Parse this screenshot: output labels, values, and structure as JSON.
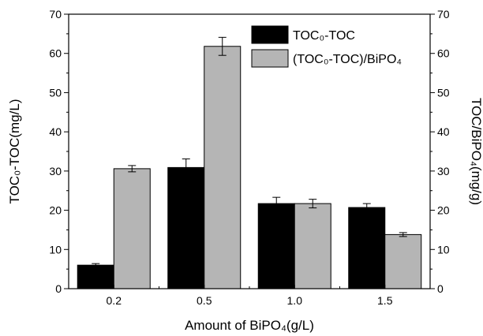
{
  "chart_data": {
    "type": "bar",
    "categories": [
      "0.2",
      "0.5",
      "1.0",
      "1.5"
    ],
    "series": [
      {
        "name": "TOC₀-TOC",
        "color": "#000000",
        "axis": "left",
        "values": [
          6.0,
          30.9,
          21.7,
          20.7
        ],
        "errors": [
          0.4,
          2.2,
          1.6,
          1.0
        ]
      },
      {
        "name": "(TOC₀-TOC)/BiPO₄",
        "color": "#b5b5b5",
        "axis": "right",
        "values": [
          30.6,
          61.8,
          21.7,
          13.8
        ],
        "errors": [
          0.8,
          2.3,
          1.1,
          0.5
        ]
      }
    ],
    "xlabel": "Amount of BiPO₄(g/L)",
    "ylabel_left": "TOC₀-TOC(mg/L)",
    "ylabel_right": "TOC/BiPO₄(mg/g)",
    "ylim_left": [
      0,
      70
    ],
    "ylim_right": [
      0,
      70
    ],
    "yticks_left": [
      "0",
      "10",
      "20",
      "30",
      "40",
      "50",
      "60",
      "70"
    ],
    "yticks_right": [
      "0",
      "10",
      "20",
      "30",
      "40",
      "50",
      "60",
      "70"
    ],
    "grid": false,
    "legend_position": "top-right"
  }
}
